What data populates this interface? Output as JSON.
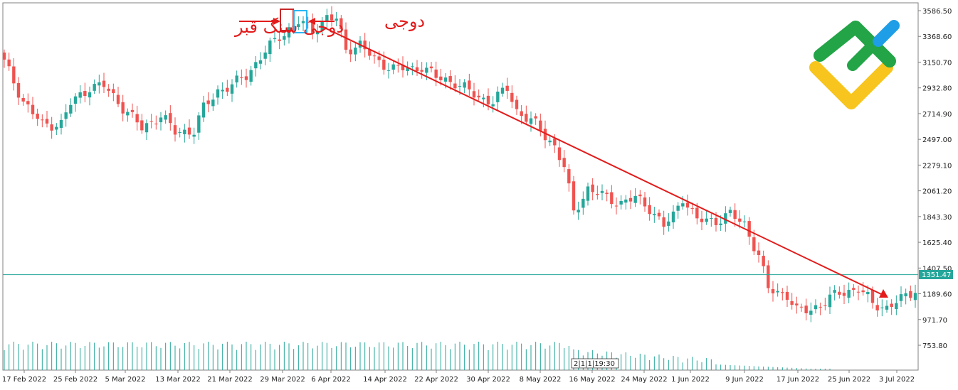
{
  "chart_data": {
    "type": "candlestick",
    "timeframe_tag": "2|1|1|19:30",
    "current_price": "1351.47",
    "y_ticks": [
      "3586.50",
      "3368.60",
      "3150.70",
      "2932.80",
      "2714.90",
      "2497.00",
      "2279.10",
      "2061.20",
      "1843.30",
      "1625.40",
      "1407.50",
      "1189.60",
      "971.70",
      "753.80"
    ],
    "y_tick_values": [
      3586.5,
      3368.6,
      3150.7,
      2932.8,
      2714.9,
      2497.0,
      2279.1,
      2061.2,
      1843.3,
      1625.4,
      1407.5,
      1189.6,
      971.7,
      753.8
    ],
    "x_ticks": [
      "17 Feb 2022",
      "25 Feb 2022",
      "5 Mar 2022",
      "13 Mar 2022",
      "21 Mar 2022",
      "29 Mar 2022",
      "6 Apr 2022",
      "14 Apr 2022",
      "22 Apr 2022",
      "30 Apr 2022",
      "8 May 2022",
      "16 May 2022",
      "24 May 2022",
      "1 Jun 2022",
      "9 Jun 2022",
      "17 Jun 2022",
      "25 Jun 2022",
      "3 Jul 2022"
    ],
    "annotations": {
      "gravestone_doji": "دوجی سنگ قبر",
      "doji": "دوجی"
    },
    "colors": {
      "bull": "#26a69a",
      "bear": "#ef5350",
      "arrow": "#e31b1b",
      "price_line": "#26a69a",
      "gravestone_box": "#c62828",
      "doji_box": "#29b6f6"
    },
    "logo": {
      "green": "#22a447",
      "yellow": "#f7c51d",
      "blue": "#1e9ee6"
    }
  }
}
